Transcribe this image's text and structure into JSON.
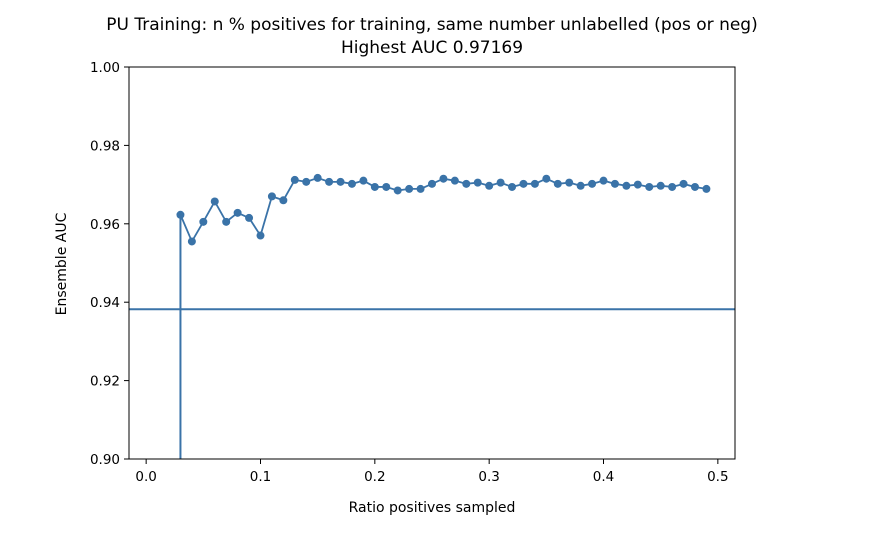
{
  "chart_data": {
    "type": "line",
    "title": "PU Training: n % positives for training, same number unlabelled (pos or neg)",
    "subtitle": "Highest AUC 0.97169",
    "xlabel": "Ratio positives sampled",
    "ylabel": "Ensemble AUC",
    "xlim": [
      -0.015,
      0.515
    ],
    "ylim": [
      0.9,
      1.0
    ],
    "xticks": [
      0.0,
      0.1,
      0.2,
      0.3,
      0.4,
      0.5
    ],
    "xtick_labels": [
      "0.0",
      "0.1",
      "0.2",
      "0.3",
      "0.4",
      "0.5"
    ],
    "yticks": [
      0.9,
      0.92,
      0.94,
      0.96,
      0.98,
      1.0
    ],
    "ytick_labels": [
      "0.90",
      "0.92",
      "0.94",
      "0.96",
      "0.98",
      "1.00"
    ],
    "grid": false,
    "color": "#3a73a8",
    "series": [
      {
        "x": [
          0.03,
          0.04,
          0.05,
          0.06,
          0.07,
          0.08,
          0.09,
          0.1,
          0.11,
          0.12,
          0.13,
          0.14,
          0.15,
          0.16,
          0.17,
          0.18,
          0.19,
          0.2,
          0.21,
          0.22,
          0.23,
          0.24,
          0.25,
          0.26,
          0.27,
          0.28,
          0.29,
          0.3,
          0.31,
          0.32,
          0.33,
          0.34,
          0.35,
          0.36,
          0.37,
          0.38,
          0.39,
          0.4,
          0.41,
          0.42,
          0.43,
          0.44,
          0.45,
          0.46,
          0.47,
          0.48,
          0.49
        ],
        "y": [
          0.9623,
          0.9555,
          0.9605,
          0.9657,
          0.9605,
          0.9628,
          0.9615,
          0.957,
          0.967,
          0.966,
          0.9712,
          0.9707,
          0.9717,
          0.9707,
          0.9707,
          0.9702,
          0.971,
          0.9694,
          0.9694,
          0.9685,
          0.9689,
          0.9689,
          0.9702,
          0.9715,
          0.971,
          0.9702,
          0.9705,
          0.9697,
          0.9705,
          0.9694,
          0.9702,
          0.9702,
          0.9715,
          0.9702,
          0.9705,
          0.9697,
          0.9702,
          0.971,
          0.9702,
          0.9697,
          0.97,
          0.9694,
          0.9697,
          0.9694,
          0.9702,
          0.9694,
          0.9689
        ]
      }
    ],
    "reference_lines": [
      {
        "orientation": "horizontal",
        "value": 0.9382
      },
      {
        "orientation": "vertical",
        "value": 0.03,
        "from": 0.9,
        "to": 0.9623
      }
    ]
  }
}
